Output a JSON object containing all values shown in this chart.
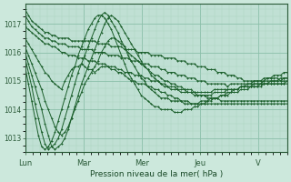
{
  "xlabel": "Pression niveau de la mer( hPa )",
  "background_color": "#cce8dc",
  "plot_bg_color": "#c0e0d4",
  "grid_color_major": "#8bbfaa",
  "grid_color_minor": "#a8d4c0",
  "line_color": "#1a5e2a",
  "marker": "+",
  "ylim": [
    1012.5,
    1017.7
  ],
  "y_ticks": [
    1013,
    1014,
    1015,
    1016,
    1017
  ],
  "x_tick_labels": [
    "Lun",
    "Mar",
    "Mer",
    "Jeu",
    "V"
  ],
  "series": [
    [
      1017.5,
      1017.3,
      1017.1,
      1017.0,
      1016.9,
      1016.8,
      1016.7,
      1016.7,
      1016.6,
      1016.6,
      1016.5,
      1016.5,
      1016.5,
      1016.5,
      1016.4,
      1016.4,
      1016.4,
      1016.4,
      1016.4,
      1016.4,
      1016.4,
      1016.4,
      1016.3,
      1016.3,
      1016.3,
      1016.3,
      1016.2,
      1016.2,
      1016.2,
      1016.2,
      1016.1,
      1016.1,
      1016.1,
      1016.1,
      1016.0,
      1016.0,
      1016.0,
      1016.0,
      1015.9,
      1015.9,
      1015.9,
      1015.9,
      1015.8,
      1015.8,
      1015.8,
      1015.8,
      1015.7,
      1015.7,
      1015.7,
      1015.6,
      1015.6,
      1015.6,
      1015.5,
      1015.5,
      1015.5,
      1015.4,
      1015.4,
      1015.4,
      1015.3,
      1015.3,
      1015.3,
      1015.2,
      1015.2,
      1015.2,
      1015.1,
      1015.1,
      1015.0,
      1015.0,
      1015.0,
      1015.0,
      1015.0,
      1015.0,
      1015.0,
      1015.1,
      1015.1,
      1015.1,
      1015.1,
      1015.0,
      1015.0,
      1015.0
    ],
    [
      1017.3,
      1017.1,
      1016.9,
      1016.8,
      1016.7,
      1016.6,
      1016.5,
      1016.5,
      1016.4,
      1016.4,
      1016.3,
      1016.3,
      1016.3,
      1016.2,
      1016.2,
      1016.2,
      1016.2,
      1016.1,
      1016.1,
      1016.1,
      1016.1,
      1016.0,
      1016.0,
      1016.0,
      1016.0,
      1015.9,
      1015.9,
      1015.9,
      1015.9,
      1015.8,
      1015.8,
      1015.8,
      1015.7,
      1015.7,
      1015.7,
      1015.6,
      1015.6,
      1015.6,
      1015.5,
      1015.5,
      1015.5,
      1015.4,
      1015.4,
      1015.3,
      1015.3,
      1015.3,
      1015.2,
      1015.2,
      1015.2,
      1015.1,
      1015.1,
      1015.1,
      1015.0,
      1015.0,
      1015.0,
      1014.9,
      1014.9,
      1014.9,
      1014.9,
      1014.9,
      1014.9,
      1014.8,
      1014.9,
      1014.9,
      1014.9,
      1014.9,
      1014.9,
      1014.9,
      1014.9,
      1014.9,
      1014.9,
      1014.9,
      1014.9,
      1014.9,
      1014.9,
      1014.9,
      1014.9,
      1014.9,
      1014.9,
      1014.9
    ],
    [
      1016.9,
      1016.8,
      1016.7,
      1016.6,
      1016.5,
      1016.4,
      1016.3,
      1016.3,
      1016.2,
      1016.2,
      1016.1,
      1016.0,
      1016.0,
      1015.9,
      1015.9,
      1015.9,
      1015.8,
      1015.8,
      1015.8,
      1015.7,
      1015.7,
      1015.7,
      1015.6,
      1015.6,
      1015.6,
      1015.5,
      1015.5,
      1015.5,
      1015.4,
      1015.4,
      1015.3,
      1015.3,
      1015.3,
      1015.2,
      1015.2,
      1015.2,
      1015.1,
      1015.1,
      1015.0,
      1015.0,
      1015.0,
      1014.9,
      1014.9,
      1014.8,
      1014.8,
      1014.8,
      1014.7,
      1014.7,
      1014.7,
      1014.6,
      1014.6,
      1014.6,
      1014.5,
      1014.5,
      1014.5,
      1014.4,
      1014.4,
      1014.4,
      1014.4,
      1014.3,
      1014.3,
      1014.3,
      1014.3,
      1014.3,
      1014.3,
      1014.3,
      1014.3,
      1014.3,
      1014.3,
      1014.3,
      1014.3,
      1014.3,
      1014.3,
      1014.3,
      1014.3,
      1014.3,
      1014.3,
      1014.3,
      1014.3,
      1014.3
    ],
    [
      1016.5,
      1016.3,
      1016.1,
      1015.9,
      1015.7,
      1015.5,
      1015.3,
      1015.2,
      1015.0,
      1014.9,
      1014.8,
      1014.7,
      1015.0,
      1015.2,
      1015.4,
      1015.5,
      1015.5,
      1015.6,
      1015.5,
      1015.4,
      1015.4,
      1015.3,
      1015.4,
      1015.5,
      1015.5,
      1015.5,
      1015.4,
      1015.4,
      1015.3,
      1015.3,
      1015.2,
      1015.1,
      1015.0,
      1015.0,
      1014.9,
      1014.9,
      1014.9,
      1014.8,
      1014.8,
      1014.7,
      1014.7,
      1014.6,
      1014.6,
      1014.5,
      1014.5,
      1014.4,
      1014.4,
      1014.3,
      1014.3,
      1014.3,
      1014.2,
      1014.2,
      1014.2,
      1014.2,
      1014.2,
      1014.2,
      1014.2,
      1014.2,
      1014.2,
      1014.2,
      1014.2,
      1014.2,
      1014.2,
      1014.2,
      1014.2,
      1014.2,
      1014.2,
      1014.2,
      1014.2,
      1014.2,
      1014.2,
      1014.2,
      1014.2,
      1014.2,
      1014.2,
      1014.2,
      1014.2,
      1014.2,
      1014.2,
      1014.2
    ],
    [
      1016.2,
      1015.9,
      1015.6,
      1015.3,
      1015.0,
      1014.7,
      1014.3,
      1014.0,
      1013.7,
      1013.4,
      1013.2,
      1013.1,
      1013.2,
      1013.4,
      1013.7,
      1014.0,
      1014.3,
      1014.6,
      1014.9,
      1015.1,
      1015.3,
      1015.5,
      1015.7,
      1016.0,
      1016.2,
      1016.4,
      1016.5,
      1016.5,
      1016.4,
      1016.3,
      1016.2,
      1016.0,
      1015.9,
      1015.8,
      1015.7,
      1015.6,
      1015.5,
      1015.4,
      1015.3,
      1015.2,
      1015.2,
      1015.1,
      1015.0,
      1015.0,
      1014.9,
      1014.9,
      1014.8,
      1014.8,
      1014.7,
      1014.7,
      1014.7,
      1014.6,
      1014.6,
      1014.6,
      1014.6,
      1014.6,
      1014.6,
      1014.7,
      1014.7,
      1014.7,
      1014.7,
      1014.7,
      1014.7,
      1014.7,
      1014.7,
      1014.8,
      1014.8,
      1014.8,
      1014.8,
      1014.8,
      1014.8,
      1014.8,
      1014.9,
      1014.9,
      1014.9,
      1014.9,
      1014.9,
      1014.9,
      1014.9,
      1015.0
    ],
    [
      1016.0,
      1015.6,
      1015.2,
      1014.8,
      1014.4,
      1014.0,
      1013.5,
      1013.1,
      1012.7,
      1012.6,
      1012.7,
      1012.8,
      1013.0,
      1013.3,
      1013.7,
      1014.1,
      1014.5,
      1014.9,
      1015.2,
      1015.5,
      1015.8,
      1016.1,
      1016.4,
      1016.7,
      1017.0,
      1017.2,
      1017.3,
      1017.2,
      1017.1,
      1016.9,
      1016.7,
      1016.5,
      1016.3,
      1016.1,
      1015.9,
      1015.7,
      1015.5,
      1015.4,
      1015.2,
      1015.1,
      1015.0,
      1014.9,
      1014.8,
      1014.8,
      1014.7,
      1014.7,
      1014.7,
      1014.6,
      1014.6,
      1014.6,
      1014.6,
      1014.5,
      1014.5,
      1014.5,
      1014.5,
      1014.5,
      1014.5,
      1014.6,
      1014.6,
      1014.6,
      1014.6,
      1014.7,
      1014.7,
      1014.7,
      1014.7,
      1014.8,
      1014.8,
      1014.8,
      1014.8,
      1014.9,
      1014.9,
      1014.9,
      1015.0,
      1015.0,
      1015.0,
      1015.0,
      1015.0,
      1015.0,
      1015.1,
      1015.1
    ],
    [
      1015.8,
      1015.3,
      1014.8,
      1014.2,
      1013.7,
      1013.2,
      1012.8,
      1012.6,
      1012.7,
      1012.8,
      1013.0,
      1013.3,
      1013.7,
      1014.1,
      1014.5,
      1014.9,
      1015.3,
      1015.6,
      1015.9,
      1016.2,
      1016.5,
      1016.8,
      1017.1,
      1017.3,
      1017.4,
      1017.3,
      1017.1,
      1016.9,
      1016.7,
      1016.4,
      1016.2,
      1015.9,
      1015.7,
      1015.5,
      1015.3,
      1015.1,
      1015.0,
      1014.8,
      1014.7,
      1014.6,
      1014.5,
      1014.4,
      1014.4,
      1014.4,
      1014.3,
      1014.3,
      1014.3,
      1014.3,
      1014.2,
      1014.2,
      1014.2,
      1014.2,
      1014.2,
      1014.3,
      1014.3,
      1014.3,
      1014.4,
      1014.4,
      1014.4,
      1014.5,
      1014.5,
      1014.5,
      1014.6,
      1014.6,
      1014.6,
      1014.7,
      1014.7,
      1014.7,
      1014.8,
      1014.8,
      1014.8,
      1014.9,
      1014.9,
      1014.9,
      1015.0,
      1015.0,
      1015.0,
      1015.1,
      1015.1,
      1015.1
    ],
    [
      1015.5,
      1014.9,
      1014.3,
      1013.7,
      1013.1,
      1012.7,
      1012.6,
      1012.7,
      1012.9,
      1013.2,
      1013.6,
      1014.0,
      1014.4,
      1014.8,
      1015.2,
      1015.5,
      1015.9,
      1016.2,
      1016.5,
      1016.8,
      1017.0,
      1017.2,
      1017.3,
      1017.3,
      1017.2,
      1017.0,
      1016.8,
      1016.5,
      1016.2,
      1015.9,
      1015.6,
      1015.3,
      1015.1,
      1014.9,
      1014.7,
      1014.5,
      1014.4,
      1014.3,
      1014.2,
      1014.1,
      1014.1,
      1014.0,
      1014.0,
      1014.0,
      1014.0,
      1013.9,
      1013.9,
      1013.9,
      1014.0,
      1014.0,
      1014.0,
      1014.1,
      1014.1,
      1014.2,
      1014.2,
      1014.3,
      1014.3,
      1014.4,
      1014.4,
      1014.5,
      1014.5,
      1014.6,
      1014.6,
      1014.7,
      1014.7,
      1014.8,
      1014.8,
      1014.9,
      1014.9,
      1015.0,
      1015.0,
      1015.0,
      1015.1,
      1015.1,
      1015.1,
      1015.2,
      1015.2,
      1015.2,
      1015.3,
      1015.3
    ]
  ]
}
